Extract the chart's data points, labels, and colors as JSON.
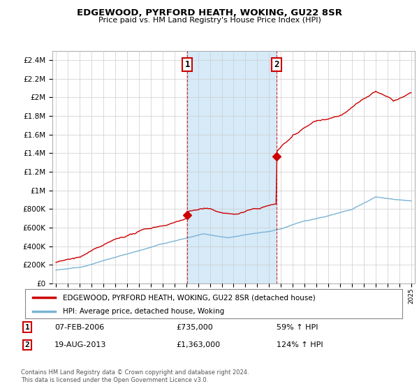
{
  "title": "EDGEWOOD, PYRFORD HEATH, WOKING, GU22 8SR",
  "subtitle": "Price paid vs. HM Land Registry's House Price Index (HPI)",
  "legend_line1": "EDGEWOOD, PYRFORD HEATH, WOKING, GU22 8SR (detached house)",
  "legend_line2": "HPI: Average price, detached house, Woking",
  "annotation1": {
    "label": "1",
    "date": "07-FEB-2006",
    "price": "£735,000",
    "pct": "59% ↑ HPI"
  },
  "annotation2": {
    "label": "2",
    "date": "19-AUG-2013",
    "price": "£1,363,000",
    "pct": "124% ↑ HPI"
  },
  "footer": "Contains HM Land Registry data © Crown copyright and database right 2024.\nThis data is licensed under the Open Government Licence v3.0.",
  "ylim": [
    0,
    2500000
  ],
  "yticks": [
    0,
    200000,
    400000,
    600000,
    800000,
    1000000,
    1200000,
    1400000,
    1600000,
    1800000,
    2000000,
    2200000,
    2400000
  ],
  "ytick_labels": [
    "£0",
    "£200K",
    "£400K",
    "£600K",
    "£800K",
    "£1M",
    "£1.2M",
    "£1.4M",
    "£1.6M",
    "£1.8M",
    "£2M",
    "£2.2M",
    "£2.4M"
  ],
  "red_color": "#cc0000",
  "blue_color": "#7ab3d4",
  "shade_color": "#d6eaf8",
  "marker1_x": 2006.1,
  "marker1_y": 735000,
  "marker2_x": 2013.63,
  "marker2_y": 1363000,
  "vline1_x": 2006.1,
  "vline2_x": 2013.63,
  "background_color": "#ffffff",
  "grid_color": "#cccccc",
  "xlim_left": 1994.7,
  "xlim_right": 2025.3
}
